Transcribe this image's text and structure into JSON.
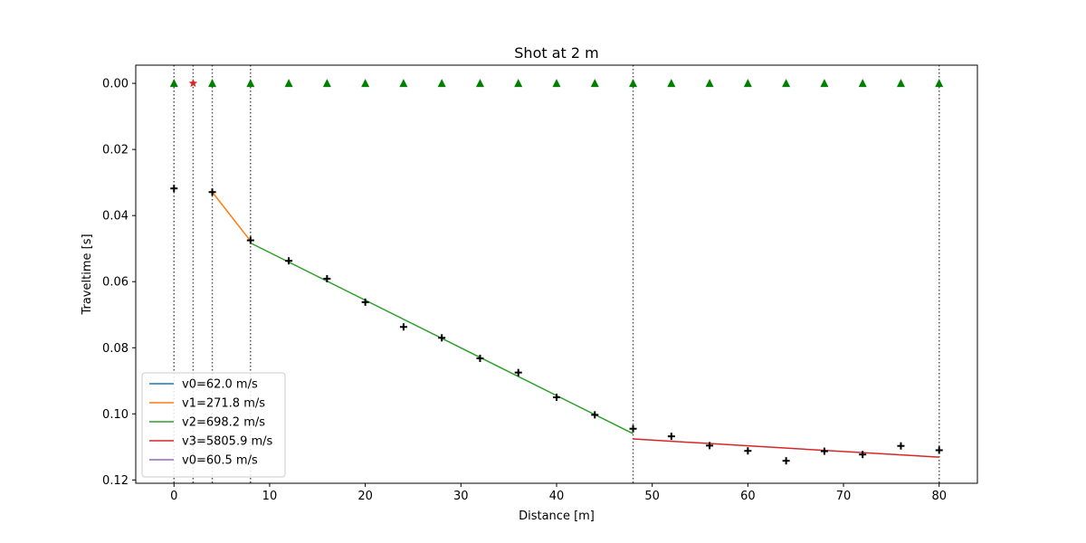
{
  "chart_data": {
    "type": "line",
    "title": "Shot at 2 m",
    "xlabel": "Distance [m]",
    "ylabel": "Traveltime [s]",
    "xlim": [
      -4,
      84
    ],
    "ylim": [
      0.121,
      -0.0055
    ],
    "y_inverted": true,
    "grid": false,
    "legend_position": "lower-left",
    "xticks": [
      0,
      10,
      20,
      30,
      40,
      50,
      60,
      70,
      80
    ],
    "xtick_labels": [
      "0",
      "10",
      "20",
      "30",
      "40",
      "50",
      "60",
      "70",
      "80"
    ],
    "yticks": [
      0.0,
      0.02,
      0.04,
      0.06,
      0.08,
      0.1,
      0.12
    ],
    "ytick_labels": [
      "0.00",
      "0.02",
      "0.04",
      "0.06",
      "0.08",
      "0.10",
      "0.12"
    ],
    "vertical_dotted_lines_x": [
      0,
      2,
      4,
      8,
      48,
      80
    ],
    "source": {
      "x": 2,
      "y": 0.0,
      "marker": "star",
      "color": "#d62728"
    },
    "receivers": {
      "marker": "triangle",
      "color": "#008000",
      "x": [
        0,
        4,
        8,
        12,
        16,
        20,
        24,
        28,
        32,
        36,
        40,
        44,
        48,
        52,
        56,
        60,
        64,
        68,
        72,
        76,
        80
      ],
      "y": 0.0
    },
    "picks": {
      "marker": "plus",
      "color": "#000000",
      "x": [
        0,
        4,
        8,
        12,
        16,
        20,
        24,
        28,
        32,
        36,
        40,
        44,
        48,
        52,
        56,
        60,
        64,
        68,
        72,
        76,
        80
      ],
      "y": [
        0.0318,
        0.0329,
        0.0475,
        0.0537,
        0.0591,
        0.0662,
        0.0737,
        0.077,
        0.0832,
        0.0875,
        0.095,
        0.1003,
        0.1045,
        0.1068,
        0.1096,
        0.1112,
        0.1142,
        0.1113,
        0.1123,
        0.1097,
        0.111
      ]
    },
    "series": [
      {
        "name": "v0=62.0 m/s",
        "color": "#1f77b4",
        "x": [],
        "y": []
      },
      {
        "name": "v1=271.8 m/s",
        "color": "#ff7f0e",
        "x": [
          4,
          8
        ],
        "y": [
          0.0329,
          0.0477
        ]
      },
      {
        "name": "v2=698.2 m/s",
        "color": "#2ca02c",
        "x": [
          8,
          48
        ],
        "y": [
          0.0483,
          0.106
        ]
      },
      {
        "name": "v3=5805.9 m/s",
        "color": "#d62728",
        "x": [
          48,
          80
        ],
        "y": [
          0.1076,
          0.1131
        ]
      },
      {
        "name": "v0=60.5 m/s",
        "color": "#9467bd",
        "x": [],
        "y": []
      }
    ]
  }
}
